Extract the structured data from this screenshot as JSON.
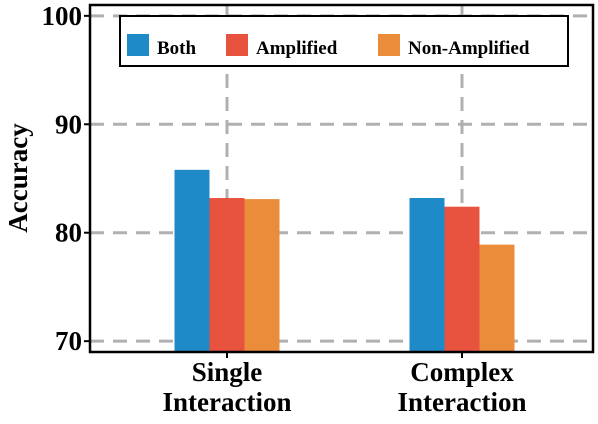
{
  "chart_data": {
    "type": "bar",
    "title": "",
    "xlabel": "",
    "ylabel": "Accuracy",
    "ylim": [
      69,
      101
    ],
    "yticks": [
      70,
      80,
      90,
      100
    ],
    "categories": [
      [
        "Single",
        "Interaction"
      ],
      [
        "Complex",
        "Interaction"
      ]
    ],
    "series": [
      {
        "name": "Both",
        "color": "#1f8ac8",
        "values": [
          85.8,
          83.2
        ]
      },
      {
        "name": "Amplified",
        "color": "#e8533f",
        "values": [
          83.2,
          82.4
        ]
      },
      {
        "name": "Non-Amplified",
        "color": "#ea8c3a",
        "values": [
          83.1,
          78.9
        ]
      }
    ],
    "grid": true,
    "grid_style": "dashed",
    "legend_position": "top"
  }
}
